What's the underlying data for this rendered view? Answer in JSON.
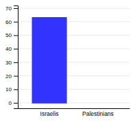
{
  "chart_data": {
    "type": "bar",
    "categories": [
      "Israelis",
      "Palestinians"
    ],
    "values": [
      63,
      0
    ],
    "colors": [
      "#3333ff",
      "#aa0000"
    ],
    "ylim": [
      -4,
      72
    ],
    "yticks": [
      0,
      10,
      20,
      30,
      40,
      50,
      60,
      70
    ],
    "grid": true
  }
}
